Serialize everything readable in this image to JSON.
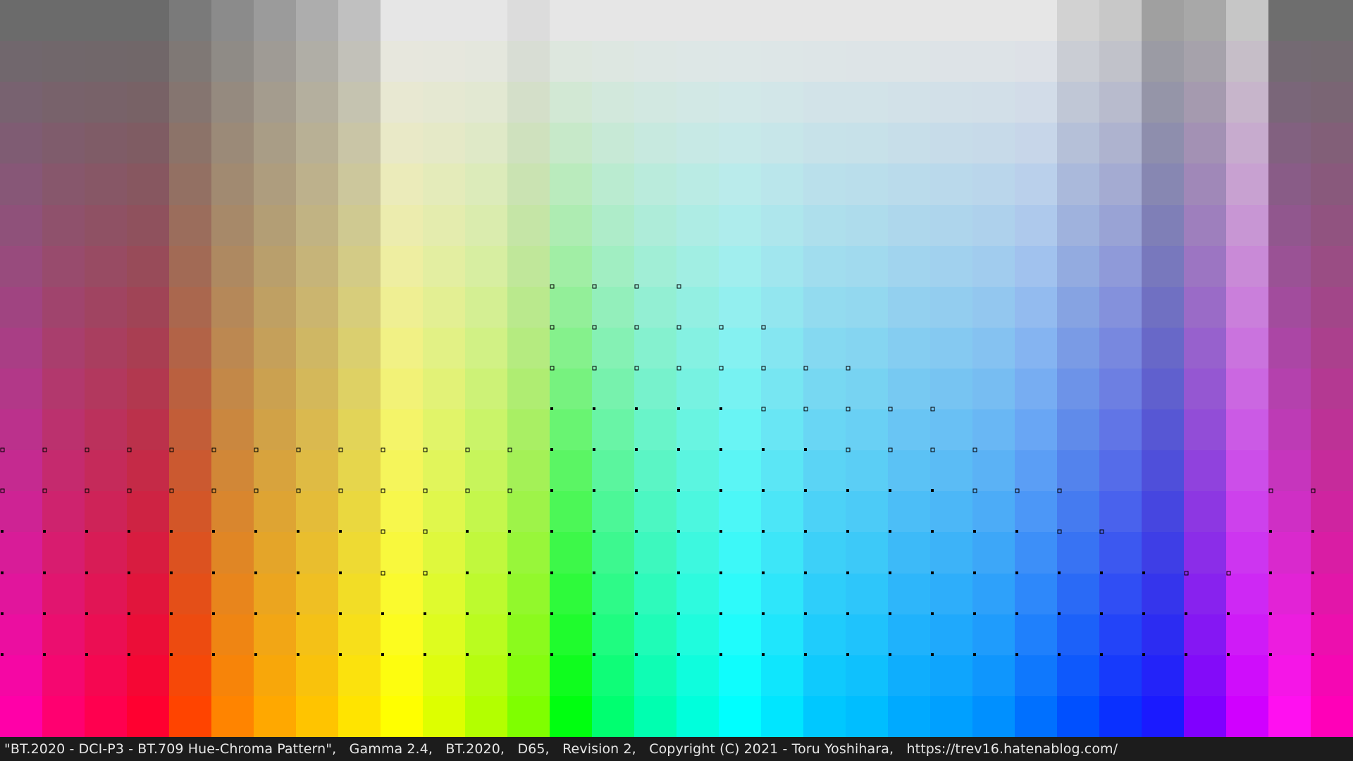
{
  "footer": {
    "caption": "\"BT.2020 - DCI-P3 - BT.709 Hue-Chroma Pattern\",   Gamma 2.4,   BT.2020,   D65,   Revision 2,   Copyright (C) 2021 - Toru Yoshihara,   https://trev16.hatenablog.com/"
  },
  "pattern": {
    "columns": 32,
    "rows": 18,
    "top_row_colors": [
      "#6b6b6b",
      "#6b6b6b",
      "#6b6b6b",
      "#6b6b6b",
      "#7a7a7a",
      "#8b8b8b",
      "#9b9b9b",
      "#adadad",
      "#c0c0c0",
      "#e6e6e6",
      "#e6e6e6",
      "#e6e6e6",
      "#dcdcdc",
      "#e6e6e6",
      "#e6e6e6",
      "#e6e6e6",
      "#e6e6e6",
      "#e6e6e6",
      "#e6e6e6",
      "#e6e6e6",
      "#e6e6e6",
      "#e6e6e6",
      "#e6e6e6",
      "#e6e6e6",
      "#e6e6e6",
      "#d2d2d2",
      "#c8c8c8",
      "#a0a0a0",
      "#a8a8a8",
      "#c6c6c6",
      "#6e6e6e",
      "#6e6e6e"
    ],
    "bottom_row_colors": [
      "#ff00a8",
      "#ff0070",
      "#ff004f",
      "#ff0030",
      "#ff4400",
      "#ff8400",
      "#ffa800",
      "#ffc400",
      "#ffe400",
      "#ffff00",
      "#ddff00",
      "#b3ff00",
      "#7fff00",
      "#00ff10",
      "#00ff70",
      "#00ffb0",
      "#00ffdc",
      "#00ffff",
      "#00e6ff",
      "#00c8ff",
      "#00beff",
      "#00aaff",
      "#00a0ff",
      "#0090ff",
      "#0070ff",
      "#0050ff",
      "#0a30ff",
      "#1a1aff",
      "#8000ff",
      "#d000ff",
      "#ff10f0",
      "#ff00b8"
    ],
    "marker_color": "#000000",
    "markers": {
      "solid_rows": {
        "17": "all-before-27,28,29,30,31",
        "16": "all-before-27,28,29,30,31",
        "15": "0-8,11-24,26",
        "14": "0-8,11-23,30,31",
        "13": "13-16",
        "12": "13-17"
      }
    }
  }
}
